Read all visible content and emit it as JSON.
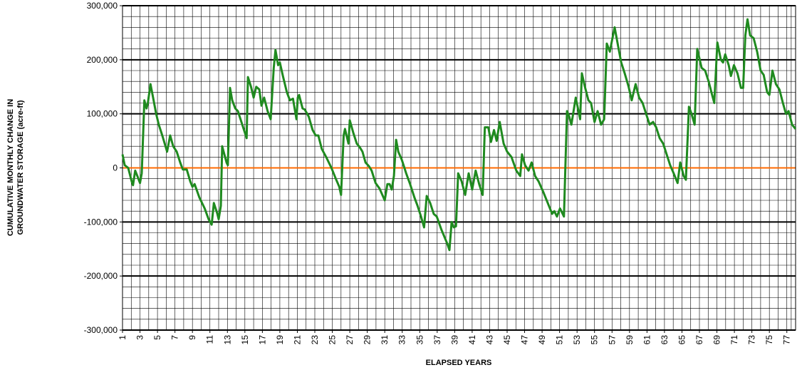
{
  "chart_data": {
    "type": "line",
    "ylabel": [
      "CUMULATIVE MONTHLY CHANGE IN",
      "GROUNDWATER STORAGE (acre-ft)"
    ],
    "xlabel": "ELAPSED YEARS",
    "color": "#1f8a1f",
    "zero_line_color": "#ff6a00",
    "grid": true,
    "xlim": [
      1,
      78
    ],
    "ylim": [
      -300000,
      300000
    ],
    "xticks": [
      1,
      3,
      5,
      7,
      9,
      11,
      13,
      15,
      17,
      19,
      21,
      23,
      25,
      27,
      29,
      31,
      33,
      35,
      37,
      39,
      41,
      43,
      45,
      47,
      49,
      51,
      53,
      55,
      57,
      59,
      61,
      63,
      65,
      67,
      69,
      71,
      73,
      75,
      77
    ],
    "yticks": [
      {
        "value": -300000,
        "label": "-300,000"
      },
      {
        "value": -200000,
        "label": "-200,000"
      },
      {
        "value": -100000,
        "label": "-100,000"
      },
      0,
      {
        "value": 100000,
        "label": "100,000"
      },
      {
        "value": 200000,
        "label": "200,000"
      },
      {
        "value": 300000,
        "label": "300,000"
      }
    ],
    "x": [
      1,
      1.25,
      1.65,
      2.05,
      2.2,
      2.45,
      2.7,
      3.0,
      3.2,
      3.5,
      3.75,
      3.9,
      4.2,
      4.5,
      4.85,
      5.15,
      5.55,
      6.1,
      6.45,
      6.8,
      7.2,
      7.6,
      7.9,
      8.35,
      8.75,
      9.0,
      9.25,
      9.8,
      10.4,
      10.85,
      11.2,
      11.45,
      11.85,
      12.0,
      12.25,
      12.4,
      12.9,
      13.05,
      13.3,
      13.55,
      13.9,
      14.2,
      14.7,
      15.2,
      15.35,
      15.7,
      16.0,
      16.3,
      16.65,
      16.9,
      17.2,
      17.6,
      17.95,
      18.3,
      18.5,
      18.8,
      19.0,
      19.35,
      19.8,
      20.15,
      20.5,
      20.9,
      21.05,
      21.2,
      21.6,
      21.85,
      22.3,
      22.75,
      23.1,
      23.4,
      23.8,
      24.3,
      24.9,
      25.4,
      25.8,
      26.0,
      26.3,
      26.45,
      26.85,
      27.0,
      27.4,
      27.8,
      28.15,
      28.45,
      28.8,
      29.2,
      29.5,
      29.95,
      30.4,
      31.0,
      31.3,
      31.55,
      31.8,
      32.05,
      32.3,
      32.55,
      32.95,
      33.45,
      33.9,
      34.4,
      34.75,
      35.15,
      35.5,
      35.8,
      36.2,
      36.6,
      36.95,
      37.5,
      38.15,
      38.4,
      38.65,
      38.9,
      39.15,
      39.4,
      39.8,
      40.2,
      40.6,
      41.0,
      41.4,
      41.8,
      42.2,
      42.45,
      42.85,
      43.15,
      43.5,
      43.8,
      44.15,
      44.6,
      45.0,
      45.5,
      46.05,
      46.5,
      46.7,
      47.05,
      47.45,
      47.8,
      48.2,
      48.6,
      49.15,
      49.65,
      50.15,
      50.4,
      50.7,
      51.05,
      51.5,
      51.85,
      52.1,
      52.35,
      52.85,
      53.35,
      53.55,
      53.9,
      54.3,
      54.6,
      55.0,
      55.35,
      55.75,
      56.1,
      56.4,
      56.75,
      57.05,
      57.3,
      57.7,
      58.05,
      58.45,
      58.9,
      59.25,
      59.7,
      60.1,
      60.5,
      60.9,
      61.3,
      61.7,
      62.05,
      62.45,
      62.85,
      63.25,
      63.65,
      64.05,
      64.5,
      64.8,
      65.2,
      65.45,
      65.8,
      66.1,
      66.45,
      66.75,
      67.25,
      67.65,
      68.05,
      68.45,
      68.7,
      69.05,
      69.45,
      69.7,
      69.95,
      70.35,
      70.6,
      70.95,
      71.35,
      71.75,
      72.0,
      72.25,
      72.5,
      72.8,
      73.2,
      73.6,
      74.0,
      74.35,
      74.75,
      75.0,
      75.35,
      75.75,
      76.15,
      76.55,
      76.9,
      77.2,
      77.6,
      78.0
    ],
    "values": [
      25000,
      5000,
      0,
      -25000,
      -32000,
      -5000,
      -15000,
      -28000,
      -10000,
      125000,
      110000,
      120000,
      155000,
      130000,
      100000,
      80000,
      60000,
      30000,
      60000,
      40000,
      30000,
      10000,
      -3000,
      -3000,
      -25000,
      -35000,
      -30000,
      -55000,
      -75000,
      -95000,
      -105000,
      -65000,
      -85000,
      -95000,
      -70000,
      40000,
      10000,
      5000,
      148000,
      125000,
      110000,
      105000,
      80000,
      55000,
      168000,
      150000,
      130000,
      150000,
      145000,
      115000,
      130000,
      105000,
      90000,
      185000,
      218000,
      190000,
      195000,
      170000,
      140000,
      125000,
      128000,
      90000,
      130000,
      135000,
      110000,
      108000,
      95000,
      70000,
      60000,
      60000,
      35000,
      20000,
      0,
      -20000,
      -35000,
      -50000,
      60000,
      72000,
      45000,
      88000,
      65000,
      45000,
      38000,
      30000,
      10000,
      3000,
      -5000,
      -28000,
      -38000,
      -60000,
      -30000,
      -30000,
      -40000,
      -15000,
      52000,
      30000,
      15000,
      -10000,
      -30000,
      -55000,
      -70000,
      -90000,
      -110000,
      -52000,
      -65000,
      -85000,
      -90000,
      -115000,
      -140000,
      -152000,
      -100000,
      -110000,
      -108000,
      -10000,
      -25000,
      -50000,
      -10000,
      -40000,
      -5000,
      -30000,
      -50000,
      75000,
      75000,
      48000,
      70000,
      50000,
      85000,
      45000,
      30000,
      20000,
      -5000,
      -15000,
      25000,
      5000,
      -5000,
      10000,
      -15000,
      -25000,
      -45000,
      -65000,
      -85000,
      -80000,
      -90000,
      -75000,
      -90000,
      105000,
      95000,
      80000,
      130000,
      90000,
      175000,
      150000,
      125000,
      120000,
      85000,
      105000,
      80000,
      90000,
      230000,
      215000,
      240000,
      260000,
      225000,
      195000,
      175000,
      150000,
      125000,
      155000,
      130000,
      120000,
      100000,
      80000,
      85000,
      75000,
      55000,
      45000,
      25000,
      5000,
      -10000,
      -28000,
      10000,
      -15000,
      -22000,
      113000,
      100000,
      80000,
      220000,
      185000,
      180000,
      160000,
      135000,
      120000,
      232000,
      200000,
      195000,
      210000,
      190000,
      170000,
      190000,
      175000,
      148000,
      148000,
      245000,
      275000,
      245000,
      240000,
      215000,
      180000,
      172000,
      140000,
      135000,
      180000,
      155000,
      145000,
      120000,
      100000,
      105000,
      80000,
      72000
    ]
  }
}
